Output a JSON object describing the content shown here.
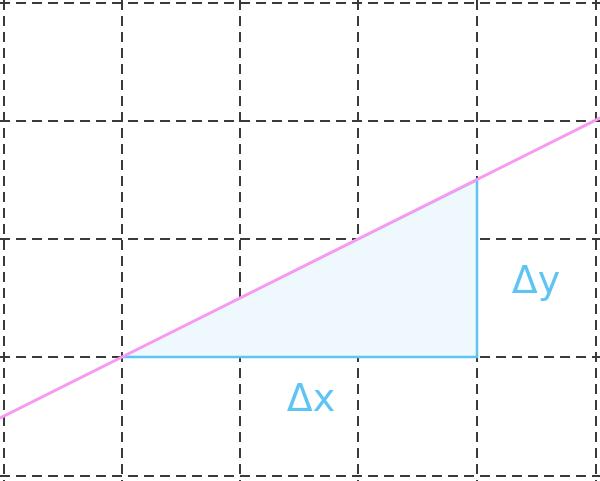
{
  "diagram": {
    "delta_y_label": "Δy",
    "delta_x_label": "Δx"
  },
  "colors": {
    "background": "#ffffff",
    "grid": "#3a3a3a",
    "line": "#f79af1",
    "triangle_stroke": "#5ec4f2",
    "triangle_fill": "#eef8fd",
    "label": "#5ec4f2"
  }
}
